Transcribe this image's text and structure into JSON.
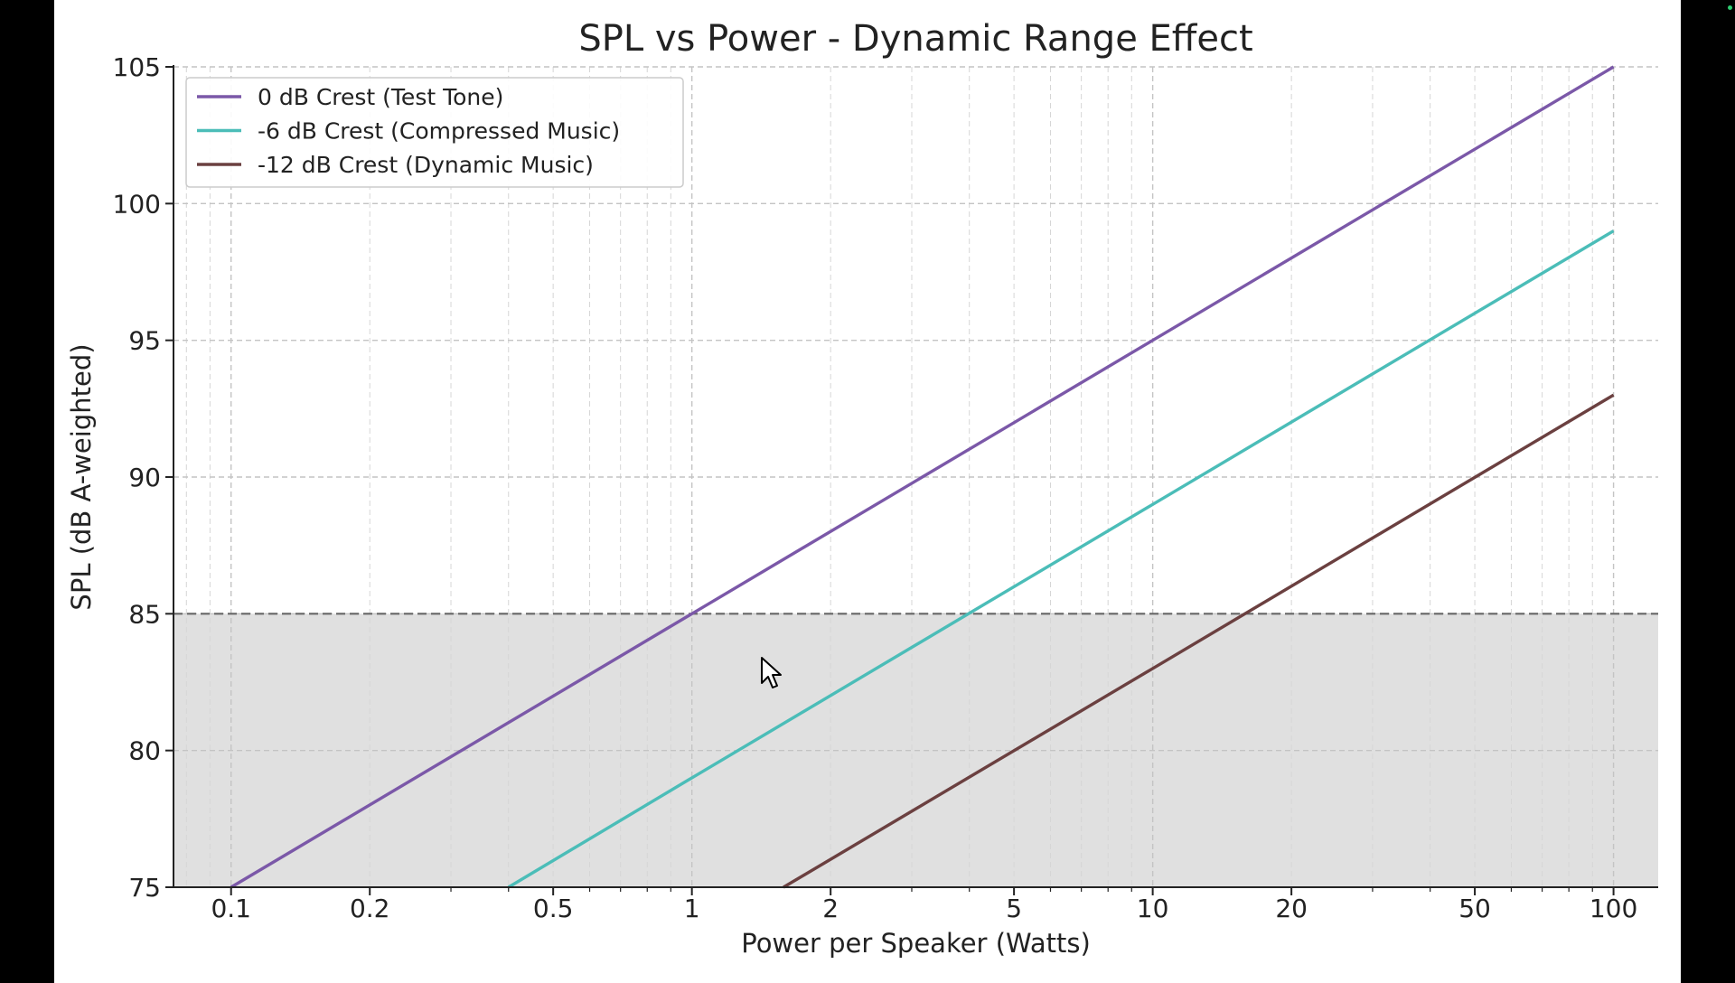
{
  "chart_data": {
    "type": "line",
    "title": "SPL vs Power - Dynamic Range Effect",
    "xlabel": "Power per Speaker (Watts)",
    "ylabel": "SPL (dB A-weighted)",
    "xscale": "log",
    "xlim": [
      0.075,
      125
    ],
    "ylim": [
      75,
      105
    ],
    "xticks": [
      0.1,
      0.2,
      0.5,
      1,
      2,
      5,
      10,
      20,
      50,
      100
    ],
    "xtick_labels": [
      "0.1",
      "0.2",
      "0.5",
      "1",
      "2",
      "5",
      "10",
      "20",
      "50",
      "100"
    ],
    "yticks": [
      75,
      80,
      85,
      90,
      95,
      100,
      105
    ],
    "ytick_labels": [
      "75",
      "80",
      "85",
      "90",
      "95",
      "100",
      "105"
    ],
    "grid": true,
    "grid_style": "dashed, major and minor",
    "legend_position": "top-left",
    "reference_line": {
      "y": 85,
      "style": "dashed",
      "color": "#666666"
    },
    "shaded_region": {
      "y_from": 75,
      "y_to": 85,
      "color": "#e0e0e0"
    },
    "series": [
      {
        "name": "0 dB Crest (Test Tone)",
        "color": "#7b58a8",
        "x": [
          0.1,
          1,
          10,
          100
        ],
        "y": [
          75,
          85,
          95,
          105
        ]
      },
      {
        "name": "-6 dB Crest (Compressed Music)",
        "color": "#4bbdb8",
        "x": [
          0.4,
          1,
          10,
          100
        ],
        "y": [
          75,
          79,
          89,
          99
        ]
      },
      {
        "name": "-12 dB Crest (Dynamic Music)",
        "color": "#6b4040",
        "x": [
          1.58,
          10,
          100
        ],
        "y": [
          75,
          83,
          93
        ]
      }
    ]
  },
  "cursor": {
    "icon": "mouse-pointer-icon"
  }
}
